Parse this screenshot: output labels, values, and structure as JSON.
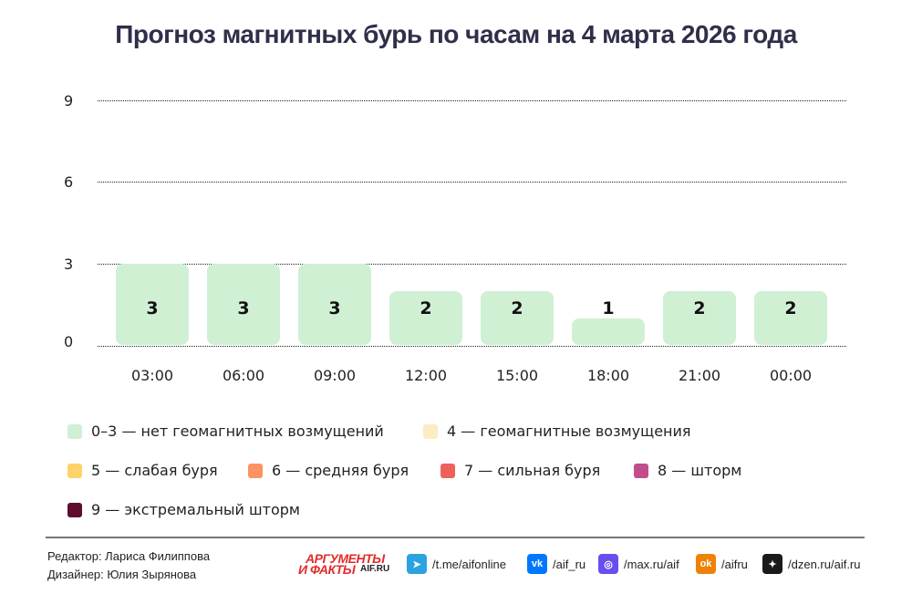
{
  "title": "Прогноз магнитных бурь по часам на 4 марта 2026 года",
  "chart_data": {
    "type": "bar",
    "title": "Прогноз магнитных бурь по часам на 4 марта 2026 года",
    "categories": [
      "03:00",
      "06:00",
      "09:00",
      "12:00",
      "15:00",
      "18:00",
      "21:00",
      "00:00"
    ],
    "values": [
      3,
      3,
      3,
      2,
      2,
      1,
      2,
      2
    ],
    "xlabel": "",
    "ylabel": "",
    "ylim": [
      0,
      9
    ],
    "yticks": [
      "9",
      "6",
      "3",
      "0"
    ],
    "grid": true,
    "bar_color": "#d0f0d4",
    "legend_position": "bottom",
    "legend": [
      {
        "label": "0–3 — нет геомагнитных возмущений",
        "color": "#d0f0d4"
      },
      {
        "label": "4 — геомагнитные возмущения",
        "color": "#fdebc4"
      },
      {
        "label": "5 — слабая буря",
        "color": "#fdd36b"
      },
      {
        "label": "6 — средняя буря",
        "color": "#fc9462"
      },
      {
        "label": "7 — сильная буря",
        "color": "#f0605a"
      },
      {
        "label": "8 — шторм",
        "color": "#c34d8a"
      },
      {
        "label": "9 — экстремальный шторм",
        "color": "#5e0c30"
      }
    ]
  },
  "footer": {
    "editor": "Редактор: Лариса Филиппова",
    "designer": "Дизайнер: Юлия Зырянова",
    "logo": {
      "line1": "АРГУМЕНТЫ",
      "line2": "И ФАКТЫ",
      "site": "AIF.RU"
    },
    "social": [
      {
        "icon": "telegram-icon",
        "text": "/t.me/aifonline",
        "color": "#2aa3e0",
        "glyph": "➤"
      },
      {
        "icon": "vk-icon",
        "text": "/aif_ru",
        "color": "#0077ff",
        "glyph": "vk"
      },
      {
        "icon": "max-icon",
        "text": "/max.ru/aif",
        "color": "#6a4df0",
        "glyph": "◎"
      },
      {
        "icon": "ok-icon",
        "text": "/aifru",
        "color": "#ee8208",
        "glyph": "ok"
      },
      {
        "icon": "dzen-icon",
        "text": "/dzen.ru/aif.ru",
        "color": "#1a1a1a",
        "glyph": "✦"
      }
    ]
  }
}
